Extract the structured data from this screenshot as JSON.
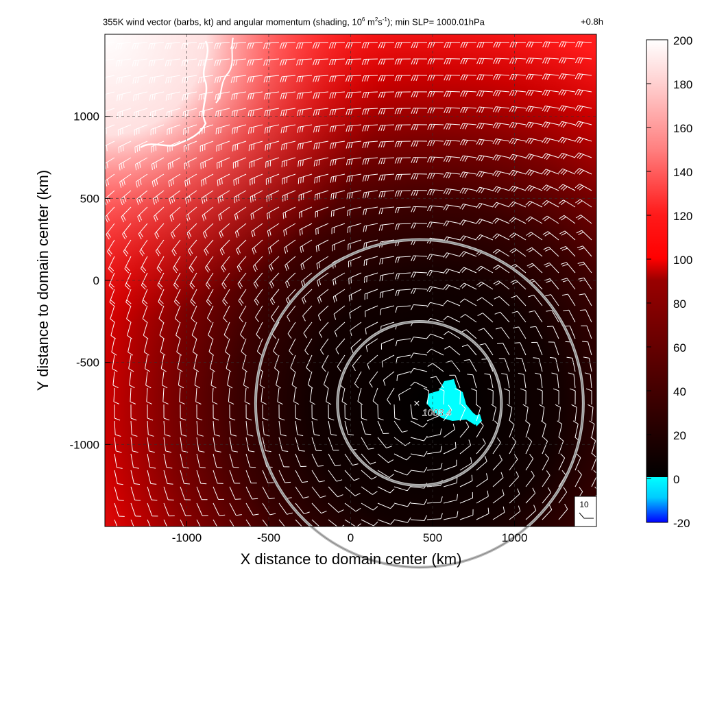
{
  "figure": {
    "title_main": "355K wind vector (barbs, kt) and angular momentum (shading, 10",
    "title_exp1": "6",
    "title_mid1": " m",
    "title_exp2": "2",
    "title_mid2": "s",
    "title_exp3": "-1",
    "title_tail": "); min SLP= 1000.01hPa",
    "time_label": "+0.8h",
    "center_label": "1003.4",
    "barb_key_label": "10"
  },
  "chart_data": {
    "type": "heatmap",
    "title": "355K wind vector (barbs, kt) and angular momentum (shading, 10^6 m^2 s^-1); min SLP= 1000.01hPa",
    "xlabel": "X distance to domain center (km)",
    "ylabel": "Y distance to domain center (km)",
    "xlim": [
      -1500,
      1500
    ],
    "ylim": [
      -1500,
      1500
    ],
    "xticks": [
      -1000,
      -500,
      0,
      500,
      1000
    ],
    "yticks": [
      -1000,
      -500,
      0,
      500,
      1000
    ],
    "grid": "dashed",
    "storm_center": {
      "x": 420,
      "y": -750,
      "label": "1003.4"
    },
    "range_rings_km": [
      500,
      1000
    ],
    "negative_region_approx": {
      "x": 600,
      "y": -770,
      "value": "< 0"
    },
    "angular_momentum_samples": [
      {
        "x": -1400,
        "y": 1400,
        "value": 195
      },
      {
        "x": -1200,
        "y": 1000,
        "value": 160
      },
      {
        "x": -1400,
        "y": 500,
        "value": 140
      },
      {
        "x": -1000,
        "y": 0,
        "value": 115
      },
      {
        "x": -1300,
        "y": -1000,
        "value": 105
      },
      {
        "x": 0,
        "y": 1200,
        "value": 100
      },
      {
        "x": 1400,
        "y": 1400,
        "value": 95
      },
      {
        "x": 500,
        "y": 500,
        "value": 60
      },
      {
        "x": 1200,
        "y": 0,
        "value": 45
      },
      {
        "x": 0,
        "y": -500,
        "value": 30
      },
      {
        "x": 420,
        "y": -750,
        "value": 5
      }
    ],
    "barb_key_kt": 10,
    "colorbar": {
      "ticks": [
        200,
        180,
        160,
        140,
        120,
        100,
        80,
        60,
        40,
        20,
        0,
        -20
      ],
      "range": [
        -20,
        200
      ],
      "colors": {
        "high": "#ffffff",
        "mid": "#ff0000",
        "low": "#000000",
        "negative_top": "#00ffff",
        "negative_bottom": "#0000ff"
      }
    }
  }
}
